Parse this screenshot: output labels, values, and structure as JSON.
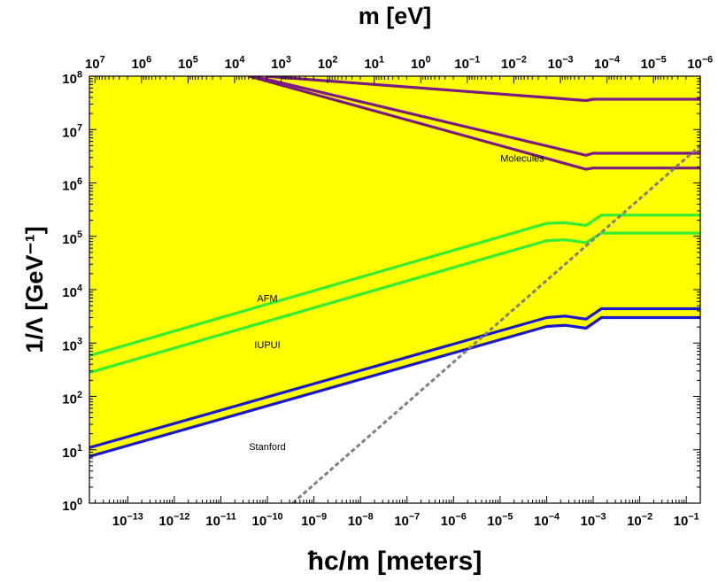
{
  "chart_data": {
    "type": "line",
    "title": "",
    "xlabel": "ħc/m [meters]",
    "ylabel": "1/Λ [GeV⁻¹]",
    "top_xlabel": "m [eV]",
    "xscale": "log",
    "yscale": "log",
    "xlim": [
      1.5e-14,
      0.2
    ],
    "ylim": [
      1,
      100000000
    ],
    "bottom_ticks": [
      {
        "exp": "-13",
        "value": 1e-13
      },
      {
        "exp": "-12",
        "value": 1e-12
      },
      {
        "exp": "-11",
        "value": 1e-11
      },
      {
        "exp": "-10",
        "value": 1e-10
      },
      {
        "exp": "-9",
        "value": 1e-09
      },
      {
        "exp": "-8",
        "value": 1e-08
      },
      {
        "exp": "-7",
        "value": 1e-07
      },
      {
        "exp": "-6",
        "value": 1e-06
      },
      {
        "exp": "-5",
        "value": 1e-05
      },
      {
        "exp": "-4",
        "value": 0.0001
      },
      {
        "exp": "-3",
        "value": 0.001
      },
      {
        "exp": "-2",
        "value": 0.01
      },
      {
        "exp": "-1",
        "value": 0.1
      }
    ],
    "top_ticks": [
      {
        "exp": "7",
        "value": 10000000.0
      },
      {
        "exp": "6",
        "value": 1000000.0
      },
      {
        "exp": "5",
        "value": 100000.0
      },
      {
        "exp": "4",
        "value": 10000.0
      },
      {
        "exp": "3",
        "value": 1000.0
      },
      {
        "exp": "2",
        "value": 100.0
      },
      {
        "exp": "1",
        "value": 10.0
      },
      {
        "exp": "0",
        "value": 1
      },
      {
        "exp": "-1",
        "value": 0.1
      },
      {
        "exp": "-2",
        "value": 0.01
      },
      {
        "exp": "-3",
        "value": 0.001
      },
      {
        "exp": "-4",
        "value": 0.0001
      },
      {
        "exp": "-5",
        "value": 1e-05
      },
      {
        "exp": "-6",
        "value": 1e-06
      }
    ],
    "left_ticks": [
      {
        "exp": "0",
        "value": 1
      },
      {
        "exp": "1",
        "value": 10
      },
      {
        "exp": "2",
        "value": 100
      },
      {
        "exp": "3",
        "value": 1000
      },
      {
        "exp": "4",
        "value": 10000
      },
      {
        "exp": "5",
        "value": 100000
      },
      {
        "exp": "6",
        "value": 1000000
      },
      {
        "exp": "7",
        "value": 10000000
      },
      {
        "exp": "8",
        "value": 100000000
      }
    ],
    "tick_base": "10",
    "fill_color": "#ffff00",
    "excluded_region_boundary": [
      [
        1.5e-14,
        8
      ],
      [
        0.0001,
        2100
      ],
      [
        0.0007,
        1900
      ],
      [
        0.0015,
        3000
      ],
      [
        0.2,
        3000
      ]
    ],
    "series": [
      {
        "label": "Molecules",
        "color": "#7b1a80",
        "points": [
          [
            9e-11,
            100000000
          ],
          [
            0.0007,
            35000000
          ],
          [
            0.001,
            37000000
          ],
          [
            0.2,
            37000000
          ]
        ]
      },
      {
        "label": "",
        "color": "#7b1a80",
        "points": [
          [
            5e-11,
            100000000
          ],
          [
            0.0007,
            3300000
          ],
          [
            0.001,
            3600000
          ],
          [
            0.2,
            3600000
          ]
        ]
      },
      {
        "label": "",
        "color": "#7b1a80",
        "points": [
          [
            4e-11,
            100000000
          ],
          [
            0.0007,
            1800000
          ],
          [
            0.001,
            1900000
          ],
          [
            0.2,
            1900000
          ]
        ]
      },
      {
        "label": "AFM",
        "color": "#33ee33",
        "points": [
          [
            1.5e-14,
            580
          ],
          [
            0.0001,
            175000
          ],
          [
            0.00025,
            180000
          ],
          [
            0.0007,
            160000
          ],
          [
            0.0015,
            250000
          ],
          [
            0.2,
            250000
          ]
        ]
      },
      {
        "label": "IUPUI",
        "color": "#33ee33",
        "points": [
          [
            1.5e-14,
            280
          ],
          [
            0.0001,
            83000
          ],
          [
            0.00025,
            86000
          ],
          [
            0.0007,
            76000
          ],
          [
            0.0015,
            115000
          ],
          [
            0.2,
            115000
          ]
        ]
      },
      {
        "label": "",
        "color": "#1a1acc",
        "points": [
          [
            1.5e-14,
            11
          ],
          [
            0.0001,
            3000
          ],
          [
            0.00025,
            3200
          ],
          [
            0.0007,
            2800
          ],
          [
            0.0015,
            4400
          ],
          [
            0.2,
            4400
          ]
        ]
      },
      {
        "label": "Stanford",
        "color": "#1a1acc",
        "points": [
          [
            1.5e-14,
            7.5
          ],
          [
            0.0001,
            2050
          ],
          [
            0.00025,
            2150
          ],
          [
            0.0007,
            1900
          ],
          [
            0.0015,
            3000
          ],
          [
            0.2,
            3000
          ]
        ]
      }
    ],
    "dashed_line": {
      "color": "#808080",
      "points": [
        [
          3.5e-10,
          1
        ],
        [
          0.2,
          5000000
        ]
      ]
    },
    "annotations": [
      {
        "text": "Molecules",
        "x": 3e-05,
        "y": 2500000
      },
      {
        "text": "AFM",
        "x": 1e-10,
        "y": 6000
      },
      {
        "text": "IUPUI",
        "x": 1e-10,
        "y": 800
      },
      {
        "text": "Stanford",
        "x": 1e-10,
        "y": 10
      }
    ]
  }
}
